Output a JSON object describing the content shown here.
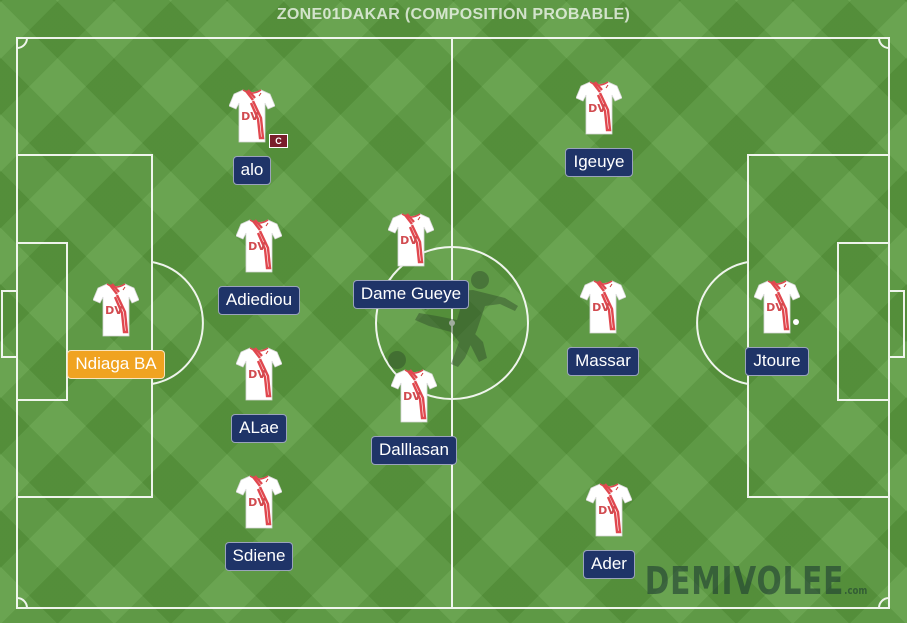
{
  "title": "ZONE01DAKAR (COMPOSITION PROBABLE)",
  "brand": {
    "name": "DEMIVOLEE",
    "suffix": ".com"
  },
  "colors": {
    "field": "#5a9a3e",
    "name_tag": "#1f3468",
    "goalkeeper_tag": "#f0a321",
    "shirt": "#ffffff",
    "shirt_stripe": "#e0484f"
  },
  "players": [
    {
      "id": "ndiaga-ba",
      "name": "Ndiaga BA",
      "goalkeeper": true
    },
    {
      "id": "alo",
      "name": "alo",
      "captain": true,
      "captain_label": "C"
    },
    {
      "id": "adiediou",
      "name": "Adiediou"
    },
    {
      "id": "alae",
      "name": "ALae"
    },
    {
      "id": "sdiene",
      "name": "Sdiene"
    },
    {
      "id": "dame-gueye",
      "name": "Dame Gueye"
    },
    {
      "id": "dalllasan",
      "name": "Dalllasan"
    },
    {
      "id": "igeuye",
      "name": "Igeuye"
    },
    {
      "id": "massar",
      "name": "Massar"
    },
    {
      "id": "ader",
      "name": "Ader"
    },
    {
      "id": "jtoure",
      "name": "Jtoure",
      "with_ball": true
    }
  ]
}
